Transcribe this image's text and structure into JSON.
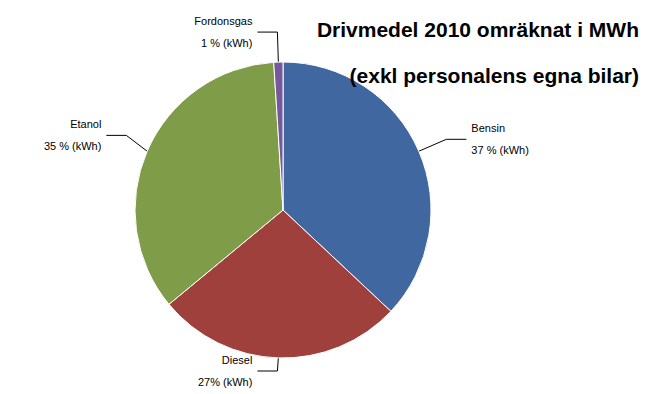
{
  "chart_data": {
    "type": "pie",
    "title": "Drivmedel 2010 omräknat i MWh",
    "subtitle": "(exkl personalens egna bilar)",
    "categories": [
      "Bensin",
      "Diesel",
      "Etanol",
      "Fordonsgas"
    ],
    "values": [
      37,
      27,
      35,
      1
    ],
    "value_labels": [
      "37 % (kWh)",
      "27% (kWh)",
      "35 % (kWh)",
      "1 % (kWh)"
    ],
    "colors": [
      "#4167a0",
      "#a0403d",
      "#7f9c48",
      "#76599a"
    ],
    "data_labels": true
  }
}
